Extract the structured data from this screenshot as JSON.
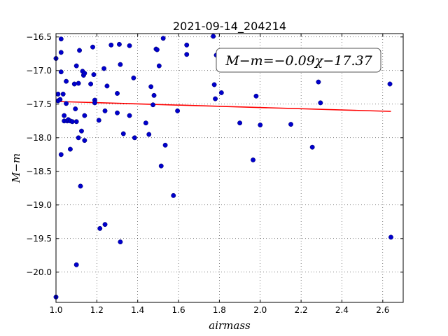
{
  "chart_data": {
    "type": "scatter",
    "title": "2021-09-14_204214",
    "xlabel": "airmass",
    "ylabel": "M−m",
    "xlim": [
      1.0,
      2.7
    ],
    "ylim": [
      -16.45,
      -20.45
    ],
    "y_inverted": true,
    "grid": true,
    "xticks": [
      1.0,
      1.2,
      1.4,
      1.6,
      1.8,
      2.0,
      2.2,
      2.4,
      2.6
    ],
    "xtick_labels": [
      "1.0",
      "1.2",
      "1.4",
      "1.6",
      "1.8",
      "2.0",
      "2.2",
      "2.4",
      "2.6"
    ],
    "yticks": [
      -16.5,
      -17.0,
      -17.5,
      -18.0,
      -18.5,
      -19.0,
      -19.5,
      -20.0
    ],
    "ytick_labels": [
      "−16.5",
      "−17.0",
      "−17.5",
      "−18.0",
      "−18.5",
      "−19.0",
      "−19.5",
      "−20.0"
    ],
    "annotation": "M−m=−0.09χ−17.37",
    "annotation_placement": "top-right",
    "point_color": "#0000cc",
    "fit_color": "#ff0000",
    "fit": {
      "slope": -0.09,
      "intercept": -17.37,
      "x_range": [
        1.02,
        2.64
      ]
    },
    "points": [
      [
        1.0,
        -20.37
      ],
      [
        1.0,
        -16.82
      ],
      [
        1.01,
        -17.35
      ],
      [
        1.01,
        -17.45
      ],
      [
        1.02,
        -17.43
      ],
      [
        1.025,
        -16.53
      ],
      [
        1.025,
        -16.73
      ],
      [
        1.025,
        -17.02
      ],
      [
        1.025,
        -18.25
      ],
      [
        1.035,
        -17.35
      ],
      [
        1.04,
        -17.67
      ],
      [
        1.04,
        -17.75
      ],
      [
        1.05,
        -17.16
      ],
      [
        1.05,
        -17.49
      ],
      [
        1.055,
        -17.75
      ],
      [
        1.06,
        -17.73
      ],
      [
        1.07,
        -17.75
      ],
      [
        1.07,
        -18.17
      ],
      [
        1.08,
        -17.76
      ],
      [
        1.09,
        -17.2
      ],
      [
        1.095,
        -17.57
      ],
      [
        1.1,
        -16.93
      ],
      [
        1.1,
        -17.76
      ],
      [
        1.1,
        -19.89
      ],
      [
        1.11,
        -17.19
      ],
      [
        1.11,
        -18.0
      ],
      [
        1.115,
        -16.7
      ],
      [
        1.12,
        -18.72
      ],
      [
        1.125,
        -17.9
      ],
      [
        1.13,
        -17.01
      ],
      [
        1.135,
        -17.07
      ],
      [
        1.14,
        -17.04
      ],
      [
        1.14,
        -17.67
      ],
      [
        1.14,
        -18.04
      ],
      [
        1.17,
        -17.2
      ],
      [
        1.18,
        -16.65
      ],
      [
        1.185,
        -17.06
      ],
      [
        1.19,
        -17.44
      ],
      [
        1.19,
        -17.48
      ],
      [
        1.21,
        -17.74
      ],
      [
        1.215,
        -19.35
      ],
      [
        1.235,
        -16.97
      ],
      [
        1.24,
        -17.6
      ],
      [
        1.24,
        -19.29
      ],
      [
        1.25,
        -17.23
      ],
      [
        1.27,
        -16.62
      ],
      [
        1.3,
        -17.34
      ],
      [
        1.3,
        -17.63
      ],
      [
        1.31,
        -16.61
      ],
      [
        1.315,
        -16.91
      ],
      [
        1.315,
        -19.55
      ],
      [
        1.33,
        -17.94
      ],
      [
        1.36,
        -16.63
      ],
      [
        1.36,
        -17.67
      ],
      [
        1.38,
        -17.11
      ],
      [
        1.385,
        -18.0
      ],
      [
        1.44,
        -17.78
      ],
      [
        1.455,
        -17.95
      ],
      [
        1.465,
        -17.24
      ],
      [
        1.475,
        -17.51
      ],
      [
        1.48,
        -17.37
      ],
      [
        1.49,
        -16.68
      ],
      [
        1.495,
        -16.69
      ],
      [
        1.505,
        -16.93
      ],
      [
        1.515,
        -18.42
      ],
      [
        1.525,
        -16.52
      ],
      [
        1.535,
        -18.11
      ],
      [
        1.575,
        -18.86
      ],
      [
        1.595,
        -17.6
      ],
      [
        1.64,
        -16.62
      ],
      [
        1.64,
        -16.76
      ],
      [
        1.77,
        -16.49
      ],
      [
        1.775,
        -17.21
      ],
      [
        1.78,
        -17.42
      ],
      [
        1.785,
        -16.77
      ],
      [
        1.81,
        -17.33
      ],
      [
        1.9,
        -17.78
      ],
      [
        1.965,
        -18.33
      ],
      [
        1.98,
        -17.38
      ],
      [
        2.0,
        -17.81
      ],
      [
        2.15,
        -17.8
      ],
      [
        2.255,
        -18.14
      ],
      [
        2.285,
        -17.17
      ],
      [
        2.295,
        -17.48
      ],
      [
        2.635,
        -17.2
      ],
      [
        2.64,
        -19.48
      ]
    ]
  }
}
